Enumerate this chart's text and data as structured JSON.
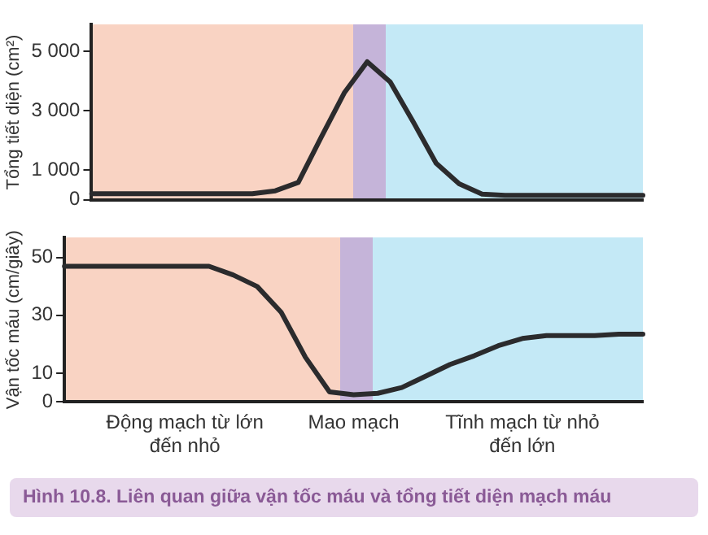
{
  "chart_data": [
    {
      "type": "line",
      "ylabel": "Tổng tiết diện (cm²)",
      "categories": [
        null,
        null,
        null,
        null,
        null,
        null,
        null,
        null,
        null,
        null,
        null,
        null,
        null,
        null,
        null,
        null,
        null,
        null,
        null,
        null,
        null,
        null,
        null,
        null,
        null
      ],
      "ylim": [
        0,
        5900
      ],
      "yticks": [
        0,
        {
          "value": 1000,
          "label": "1 000"
        },
        {
          "value": 3000,
          "label": "3 000"
        },
        {
          "value": 5000,
          "label": "5 000"
        }
      ],
      "tick_labels": "y",
      "grid": false,
      "legend": false,
      "marker": "none",
      "line_style": "solid",
      "series": [
        {
          "color": "#2b2b2d",
          "values": [
            200,
            200,
            200,
            200,
            200,
            200,
            200,
            200,
            300,
            580,
            2110,
            3600,
            4650,
            3970,
            2630,
            1230,
            540,
            190,
            150,
            150,
            150,
            150,
            150,
            150,
            150
          ]
        }
      ]
    },
    {
      "type": "line",
      "ylabel": "Vận tốc máu (cm/giây)",
      "categories": [
        null,
        null,
        null,
        null,
        null,
        "Động mạch từ lớn đến nhỏ",
        null,
        null,
        null,
        null,
        null,
        null,
        "Mao mạch",
        null,
        null,
        null,
        null,
        null,
        null,
        "Tĩnh mạch từ nhỏ đến lớn",
        null,
        null,
        null,
        null,
        null
      ],
      "ylim": [
        0,
        57
      ],
      "yticks": [
        0,
        10,
        30,
        50
      ],
      "grid": false,
      "legend": false,
      "marker": "none",
      "line_style": "solid",
      "series": [
        {
          "color": "#2b2b2d",
          "values": [
            47,
            47,
            47,
            47,
            47,
            47,
            47,
            44,
            40,
            31,
            15.5,
            3.5,
            2.5,
            3,
            5,
            9,
            13,
            16,
            19.5,
            22,
            23,
            23,
            23,
            23.5,
            23.5
          ]
        }
      ],
      "annotations": [
        "Hình 10.8. Liên quan giữa vận tốc máu và tổng tiết diện mạch máu"
      ]
    }
  ]
}
